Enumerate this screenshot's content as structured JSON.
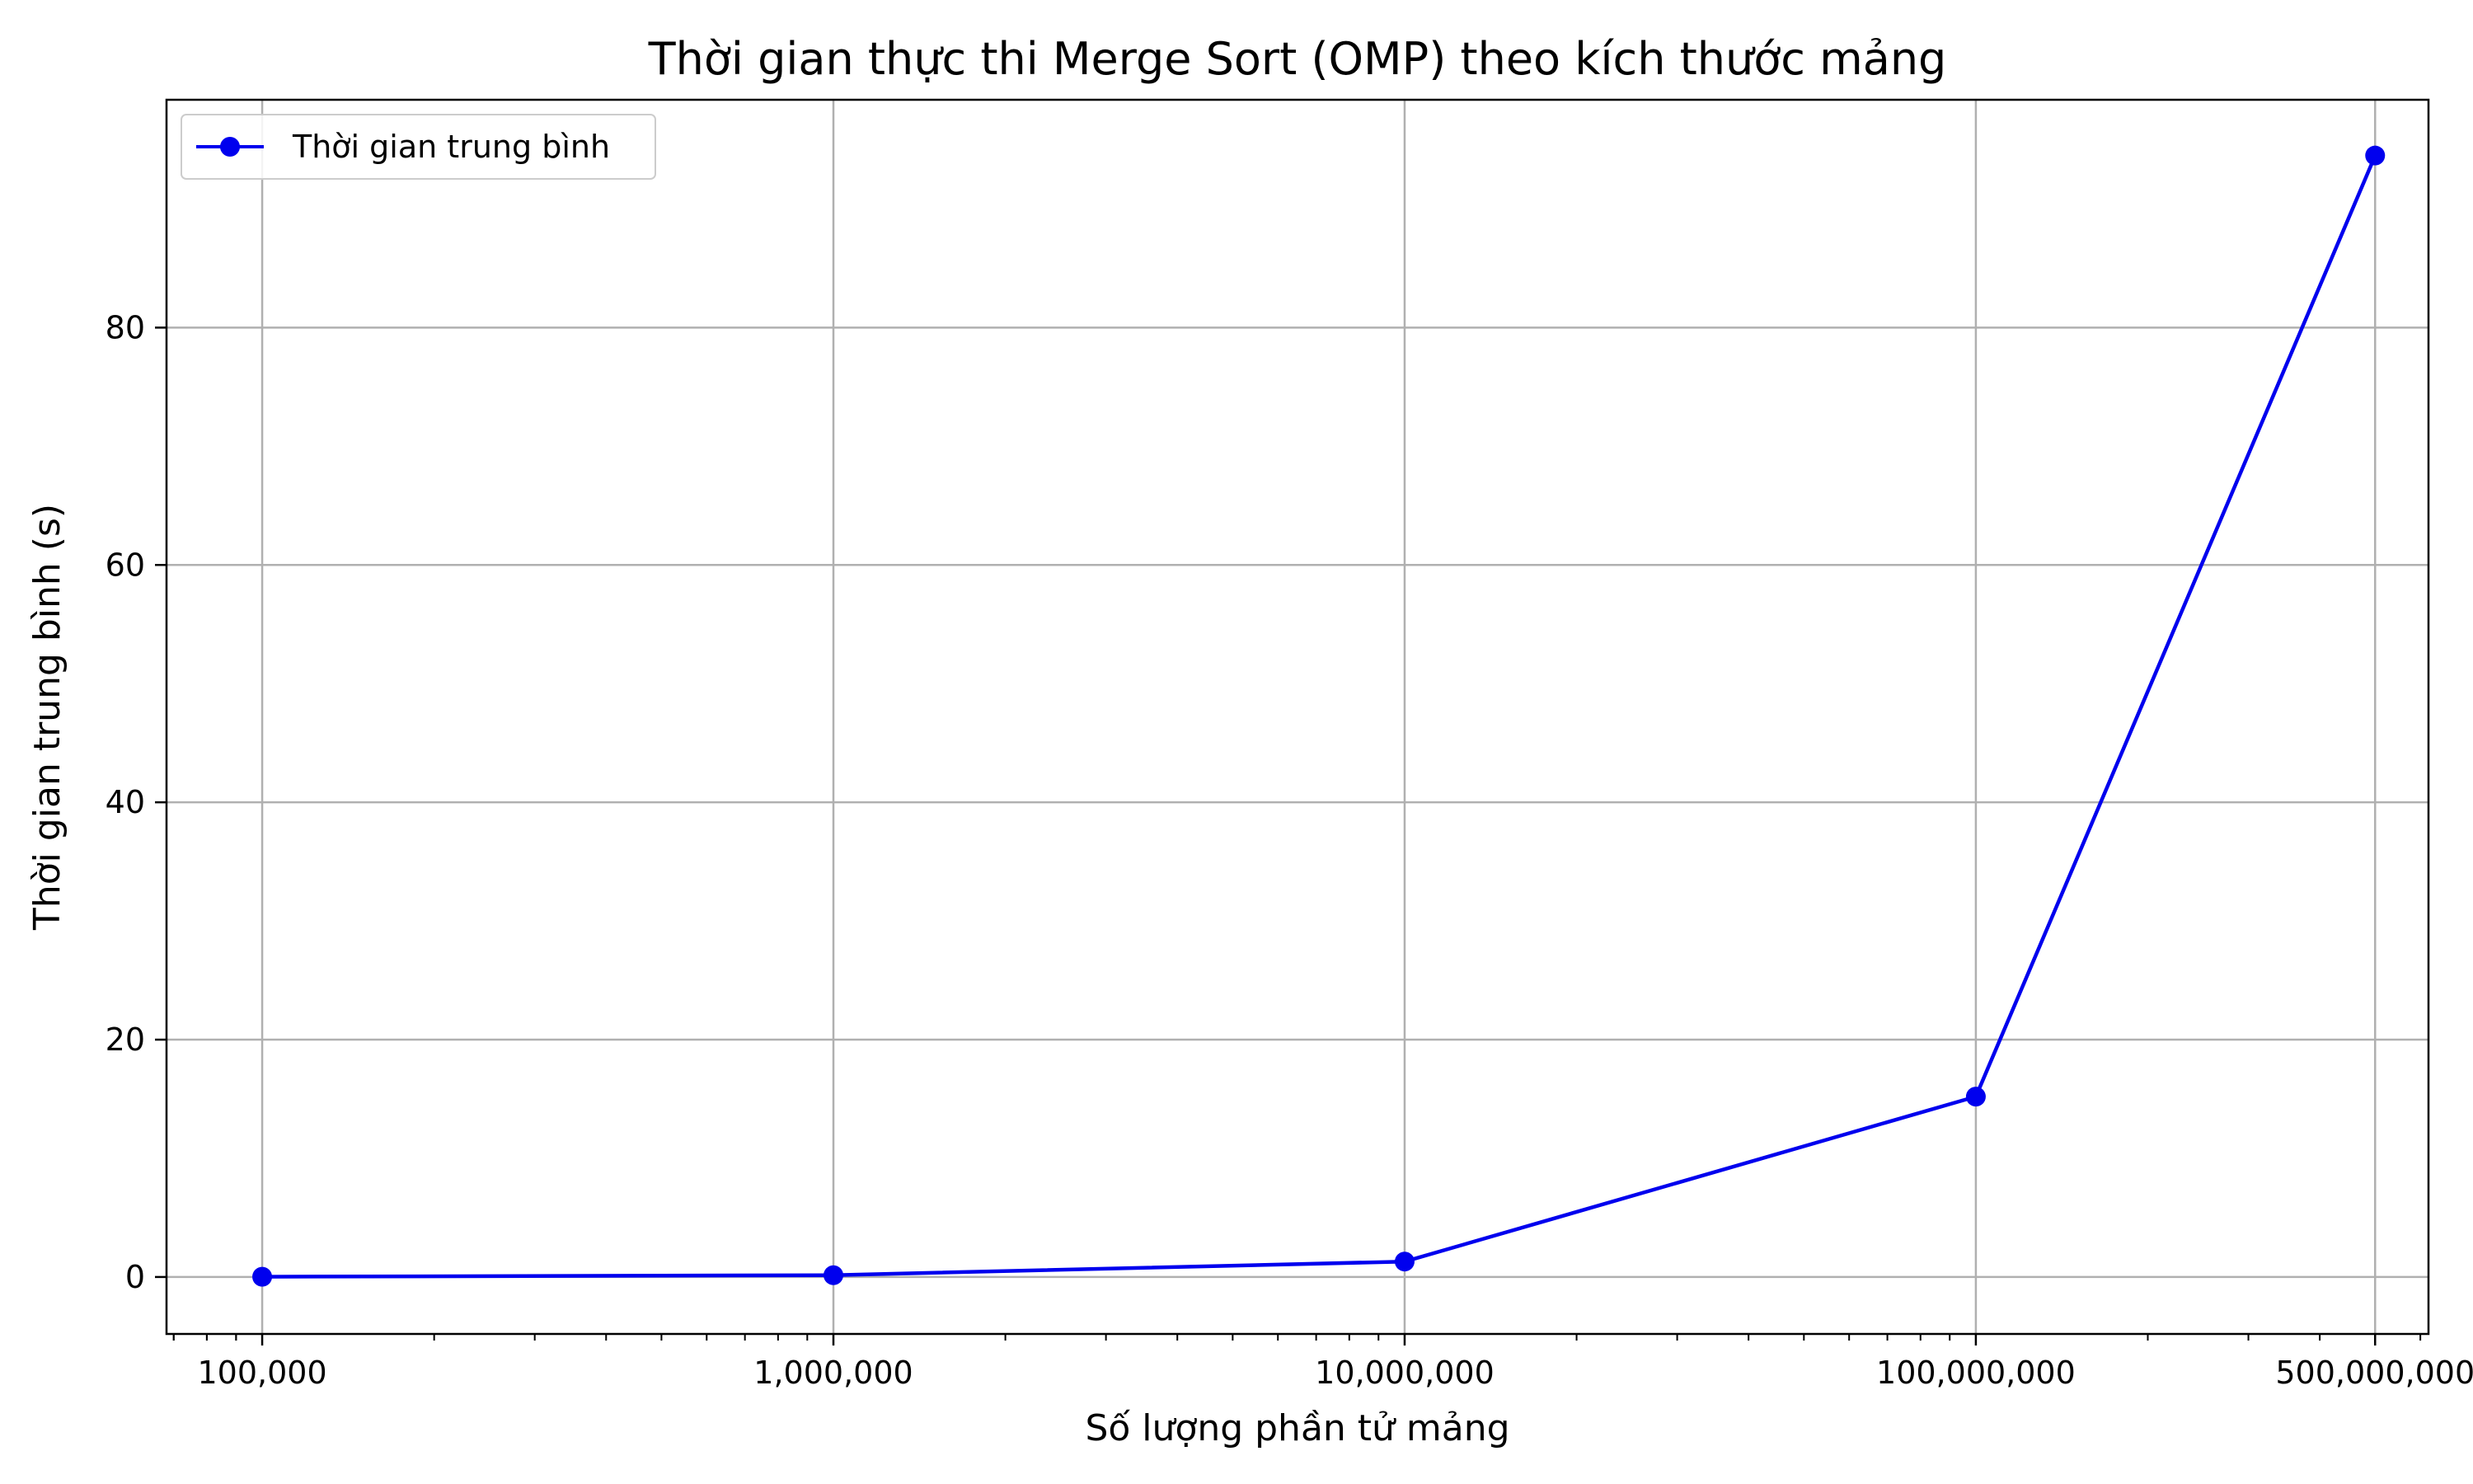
{
  "chart_data": {
    "type": "line",
    "title": "Thời gian thực thi Merge Sort (OMP) theo kích thước mảng",
    "xlabel": "Số lượng phần tử mảng",
    "ylabel": "Thời gian trung bình (s)",
    "xscale": "log",
    "xlim": [
      68000,
      620000000
    ],
    "ylim": [
      -4.8,
      99.2
    ],
    "grid": true,
    "legend_position": "top-left",
    "x_ticks": [
      100000,
      1000000,
      10000000,
      100000000,
      500000000
    ],
    "x_tick_labels": [
      "100,000",
      "1,000,000",
      "10,000,000",
      "100,000,000",
      "500,000,000"
    ],
    "y_ticks": [
      0,
      20,
      40,
      60,
      80
    ],
    "y_tick_labels": [
      "0",
      "20",
      "40",
      "60",
      "80"
    ],
    "series": [
      {
        "name": "Thời gian trung bình",
        "color": "#0000ee",
        "marker": "circle",
        "x": [
          100000,
          1000000,
          10000000,
          100000000,
          500000000
        ],
        "y": [
          0.02,
          0.15,
          1.3,
          15.2,
          94.5
        ]
      }
    ]
  }
}
